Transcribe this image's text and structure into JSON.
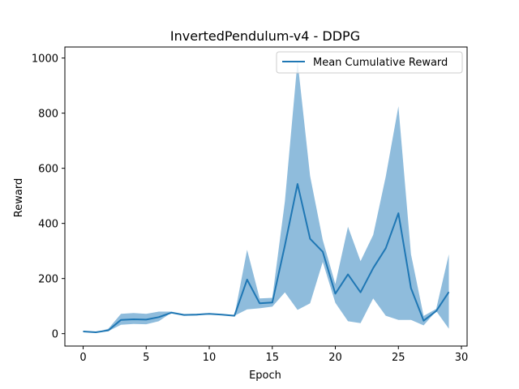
{
  "chart_data": {
    "type": "line",
    "title": "InvertedPendulum-v4 - DDPG",
    "xlabel": "Epoch",
    "ylabel": "Reward",
    "xlim": [
      -1.45,
      30.45
    ],
    "ylim": [
      -45,
      1040
    ],
    "xticks": [
      0,
      5,
      10,
      15,
      20,
      25,
      30
    ],
    "yticks": [
      0,
      200,
      400,
      600,
      800,
      1000
    ],
    "grid": false,
    "legend_position": "top-right",
    "line_color": "#1f77b4",
    "band_color": "#8fbcdc",
    "x": [
      0,
      1,
      2,
      3,
      4,
      5,
      6,
      7,
      8,
      9,
      10,
      11,
      12,
      13,
      14,
      15,
      16,
      17,
      18,
      19,
      20,
      21,
      22,
      23,
      24,
      25,
      26,
      27,
      28,
      29
    ],
    "series": [
      {
        "name": "Mean Cumulative Reward",
        "values": [
          8,
          5,
          12,
          50,
          52,
          51,
          60,
          76,
          68,
          69,
          72,
          69,
          65,
          196,
          110,
          113,
          320,
          543,
          344,
          297,
          145,
          215,
          150,
          238,
          310,
          437,
          165,
          47,
          82,
          151
        ],
        "band_lower": [
          8,
          5,
          9,
          32,
          35,
          34,
          45,
          76,
          65,
          66,
          72,
          69,
          65,
          88,
          92,
          98,
          150,
          86,
          110,
          260,
          112,
          45,
          38,
          128,
          65,
          50,
          50,
          30,
          82,
          18
        ],
        "band_upper": [
          8,
          5,
          18,
          72,
          75,
          72,
          80,
          80,
          71,
          72,
          72,
          69,
          65,
          304,
          128,
          130,
          480,
          990,
          572,
          340,
          180,
          388,
          263,
          358,
          570,
          825,
          288,
          64,
          90,
          288
        ]
      }
    ]
  }
}
